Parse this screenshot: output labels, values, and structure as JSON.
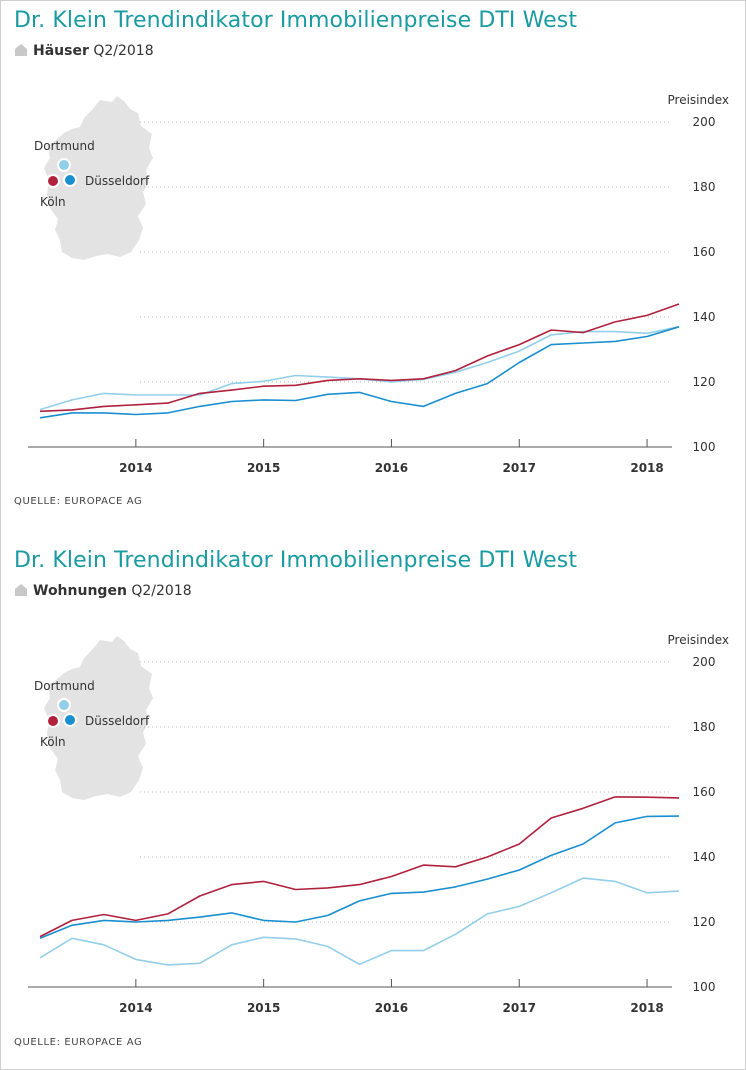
{
  "colors": {
    "title": "#1a9ba2",
    "koeln": "#b0213d",
    "duesseldorf": "#1a8fd0",
    "dortmund": "#93cfea",
    "map": "#e3e3e3",
    "grid": "#bdbdbd"
  },
  "source_label": "QUELLE: EUROPACE AG",
  "charts": [
    {
      "title": "Dr. Klein Trendindikator Immobilienpreise DTI West",
      "category_bold": "Häuser",
      "period": "Q2/2018",
      "icon": "house-icon",
      "map_labels": {
        "dortmund": "Dortmund",
        "duesseldorf": "Düsseldorf",
        "koeln": "Köln"
      }
    },
    {
      "title": "Dr. Klein Trendindikator Immobilienpreise DTI West",
      "category_bold": "Wohnungen",
      "period": "Q2/2018",
      "icon": "house-icon",
      "map_labels": {
        "dortmund": "Dortmund",
        "duesseldorf": "Düsseldorf",
        "koeln": "Köln"
      }
    }
  ],
  "chart_data": [
    {
      "type": "line",
      "ylabel": "Preisindex",
      "ylim": [
        100,
        200
      ],
      "yticks": [
        100,
        120,
        140,
        160,
        180,
        200
      ],
      "xticks": [
        "2014",
        "2015",
        "2016",
        "2017",
        "2018"
      ],
      "grid": true,
      "x": [
        "Q2 2013",
        "Q3 2013",
        "Q4 2013",
        "Q1 2014",
        "Q2 2014",
        "Q3 2014",
        "Q4 2014",
        "Q1 2015",
        "Q2 2015",
        "Q3 2015",
        "Q4 2015",
        "Q1 2016",
        "Q2 2016",
        "Q3 2016",
        "Q4 2016",
        "Q1 2017",
        "Q2 2017",
        "Q3 2017",
        "Q4 2017",
        "Q1 2018",
        "Q2 2018"
      ],
      "series": [
        {
          "name": "Köln",
          "color": "#b0213d",
          "values": [
            111,
            111.4,
            112.5,
            113,
            113.5,
            116.5,
            117.5,
            118.7,
            119,
            120.5,
            121,
            120.5,
            121,
            123.5,
            128,
            131.5,
            136,
            135.2,
            138.5,
            140.5,
            144
          ]
        },
        {
          "name": "Düsseldorf",
          "color": "#1a8fd0",
          "values": [
            109,
            110.5,
            110.5,
            110,
            110.5,
            112.5,
            114,
            114.5,
            114.3,
            116.2,
            116.8,
            114,
            112.5,
            116.5,
            119.5,
            126,
            131.5,
            132,
            132.5,
            134,
            137
          ]
        },
        {
          "name": "Dortmund",
          "color": "#93cfea",
          "values": [
            111.5,
            114.5,
            116.5,
            116,
            116,
            116,
            119.5,
            120.2,
            122,
            121.5,
            121,
            120,
            120.8,
            123,
            126,
            129.5,
            134.5,
            135.5,
            135.5,
            135,
            137
          ]
        }
      ]
    },
    {
      "type": "line",
      "ylabel": "Preisindex",
      "ylim": [
        100,
        200
      ],
      "yticks": [
        100,
        120,
        140,
        160,
        180,
        200
      ],
      "xticks": [
        "2014",
        "2015",
        "2016",
        "2017",
        "2018"
      ],
      "grid": true,
      "x": [
        "Q2 2013",
        "Q3 2013",
        "Q4 2013",
        "Q1 2014",
        "Q2 2014",
        "Q3 2014",
        "Q4 2014",
        "Q1 2015",
        "Q2 2015",
        "Q3 2015",
        "Q4 2015",
        "Q1 2016",
        "Q2 2016",
        "Q3 2016",
        "Q4 2016",
        "Q1 2017",
        "Q2 2017",
        "Q3 2017",
        "Q4 2017",
        "Q1 2018",
        "Q2 2018"
      ],
      "series": [
        {
          "name": "Köln",
          "color": "#b0213d",
          "values": [
            115.5,
            120.5,
            122.3,
            120.5,
            122.5,
            128,
            131.5,
            132.5,
            130,
            130.5,
            131.5,
            134,
            137.5,
            137,
            140,
            144,
            152,
            155,
            158.5,
            158.4,
            158.2
          ]
        },
        {
          "name": "Düsseldorf",
          "color": "#1a8fd0",
          "values": [
            115,
            119,
            120.5,
            120,
            120.5,
            121.5,
            122.8,
            120.5,
            120,
            122,
            126.5,
            128.8,
            129.2,
            130.8,
            133.2,
            136,
            140.5,
            144,
            150.5,
            152.5,
            152.6
          ]
        },
        {
          "name": "Dortmund",
          "color": "#93cfea",
          "values": [
            109,
            115,
            113,
            108.5,
            106.8,
            107.3,
            113,
            115.3,
            114.8,
            112.5,
            107,
            111.2,
            111.2,
            116.2,
            122.5,
            124.8,
            129,
            133.5,
            132.5,
            129,
            129.5
          ]
        }
      ]
    }
  ]
}
